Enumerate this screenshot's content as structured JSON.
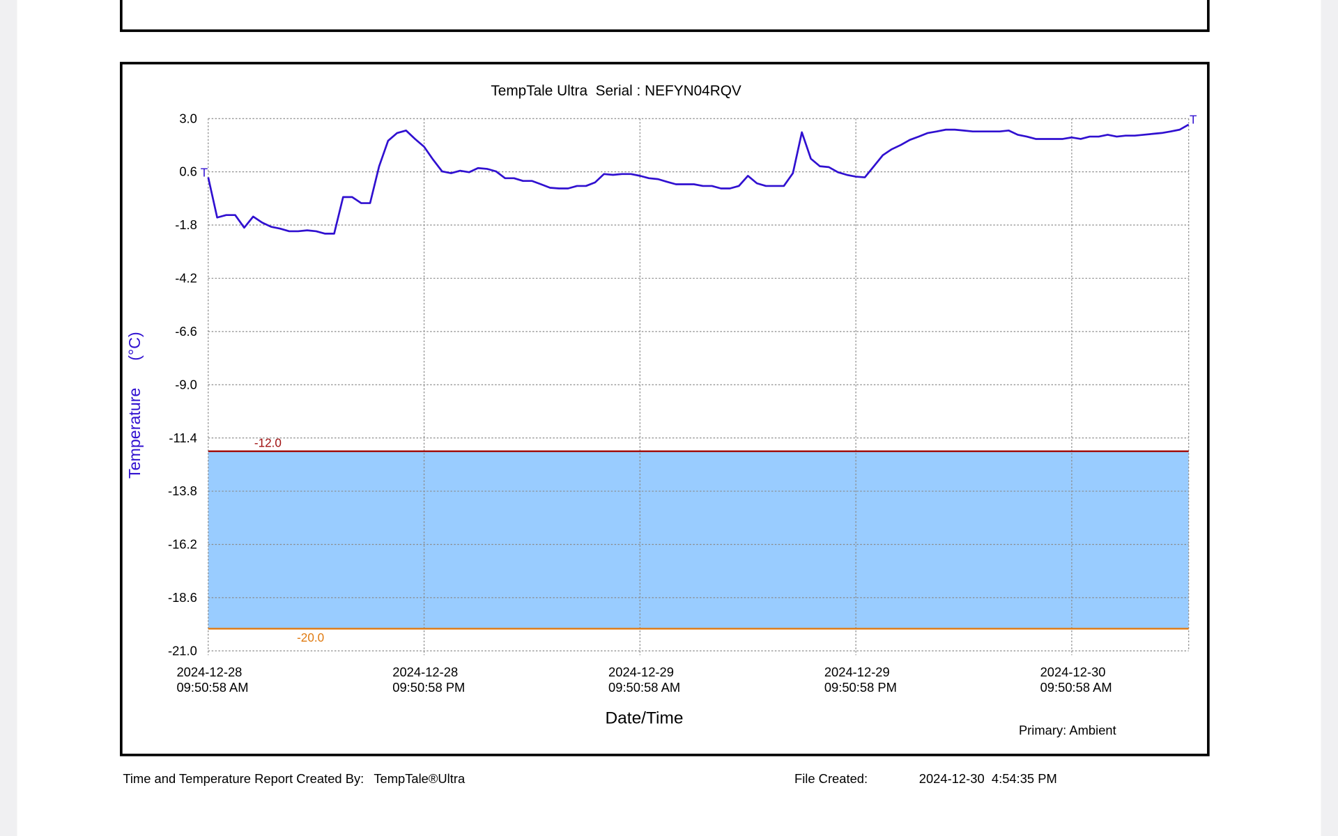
{
  "chart_data": {
    "type": "line",
    "title": "TempTale Ultra  Serial : NEFYN04RQV",
    "y_label": "Temperature      (°C)",
    "x_label": "Date/Time",
    "legend_text": "Primary: Ambient",
    "start_marker": "T",
    "end_marker": "T",
    "ylim": [
      -21,
      3
    ],
    "yticks": [
      {
        "value": 3,
        "label": "3.0"
      },
      0.6,
      -1.8,
      -4.2,
      -6.6,
      {
        "value": -9,
        "label": "-9.0"
      },
      -11.4,
      -13.8,
      -16.2,
      -18.6,
      {
        "value": -21,
        "label": "-21.0"
      }
    ],
    "grid": true,
    "band_color": "#99ccff",
    "limits": [
      {
        "value": -12,
        "label": "-12.0",
        "color": "#a01010"
      },
      {
        "value": -20,
        "label": "-20.0",
        "color": "#e07a10"
      }
    ],
    "categories": [
      "2024-12-28\n09:50:58 AM",
      null,
      null,
      null,
      null,
      null,
      null,
      null,
      null,
      null,
      null,
      null,
      null,
      null,
      null,
      null,
      null,
      null,
      null,
      null,
      null,
      null,
      null,
      null,
      "2024-12-28\n09:50:58 PM",
      null,
      null,
      null,
      null,
      null,
      null,
      null,
      null,
      null,
      null,
      null,
      null,
      null,
      null,
      null,
      null,
      null,
      null,
      null,
      null,
      null,
      null,
      null,
      "2024-12-29\n09:50:58 AM",
      null,
      null,
      null,
      null,
      null,
      null,
      null,
      null,
      null,
      null,
      null,
      null,
      null,
      null,
      null,
      null,
      null,
      null,
      null,
      null,
      null,
      null,
      null,
      "2024-12-29\n09:50:58 PM",
      null,
      null,
      null,
      null,
      null,
      null,
      null,
      null,
      null,
      null,
      null,
      null,
      null,
      null,
      null,
      null,
      null,
      null,
      null,
      null,
      null,
      null,
      null,
      "2024-12-30\n09:50:58 AM",
      null,
      null,
      null,
      null,
      null,
      null,
      null,
      null,
      null,
      null,
      null,
      null,
      null
    ],
    "series": [
      {
        "name": "Ambient",
        "color": "#3010d0",
        "values": [
          0.35,
          -1.46,
          -1.35,
          -1.35,
          -1.92,
          -1.42,
          -1.69,
          -1.88,
          -1.96,
          -2.08,
          -2.08,
          -2.04,
          -2.08,
          -2.19,
          -2.19,
          -0.54,
          -0.54,
          -0.81,
          -0.81,
          0.85,
          2.0,
          2.35,
          2.46,
          2.08,
          1.73,
          1.15,
          0.62,
          0.54,
          0.65,
          0.58,
          0.77,
          0.73,
          0.62,
          0.31,
          0.31,
          0.19,
          0.19,
          0.04,
          -0.12,
          -0.15,
          -0.15,
          -0.04,
          -0.04,
          0.12,
          0.5,
          0.46,
          0.5,
          0.5,
          0.42,
          0.31,
          0.27,
          0.15,
          0.04,
          0.04,
          0.04,
          -0.04,
          -0.04,
          -0.15,
          -0.15,
          -0.04,
          0.42,
          0.08,
          -0.04,
          -0.04,
          -0.04,
          0.54,
          2.38,
          1.19,
          0.85,
          0.81,
          0.58,
          0.46,
          0.38,
          0.35,
          0.85,
          1.35,
          1.62,
          1.81,
          2.04,
          2.19,
          2.35,
          2.42,
          2.5,
          2.5,
          2.46,
          2.42,
          2.42,
          2.42,
          2.42,
          2.46,
          2.27,
          2.19,
          2.08,
          2.08,
          2.08,
          2.08,
          2.15,
          2.08,
          2.19,
          2.19,
          2.27,
          2.19,
          2.23,
          2.23,
          2.27,
          2.31,
          2.35,
          2.42,
          2.5,
          2.73
        ]
      }
    ]
  },
  "footer": {
    "created_by_label": "Time and Temperature Report Created By:",
    "created_by": "TempTale®Ultra",
    "file_created_label": "File Created:",
    "file_created": "2024-12-30  4:54:35 PM"
  }
}
